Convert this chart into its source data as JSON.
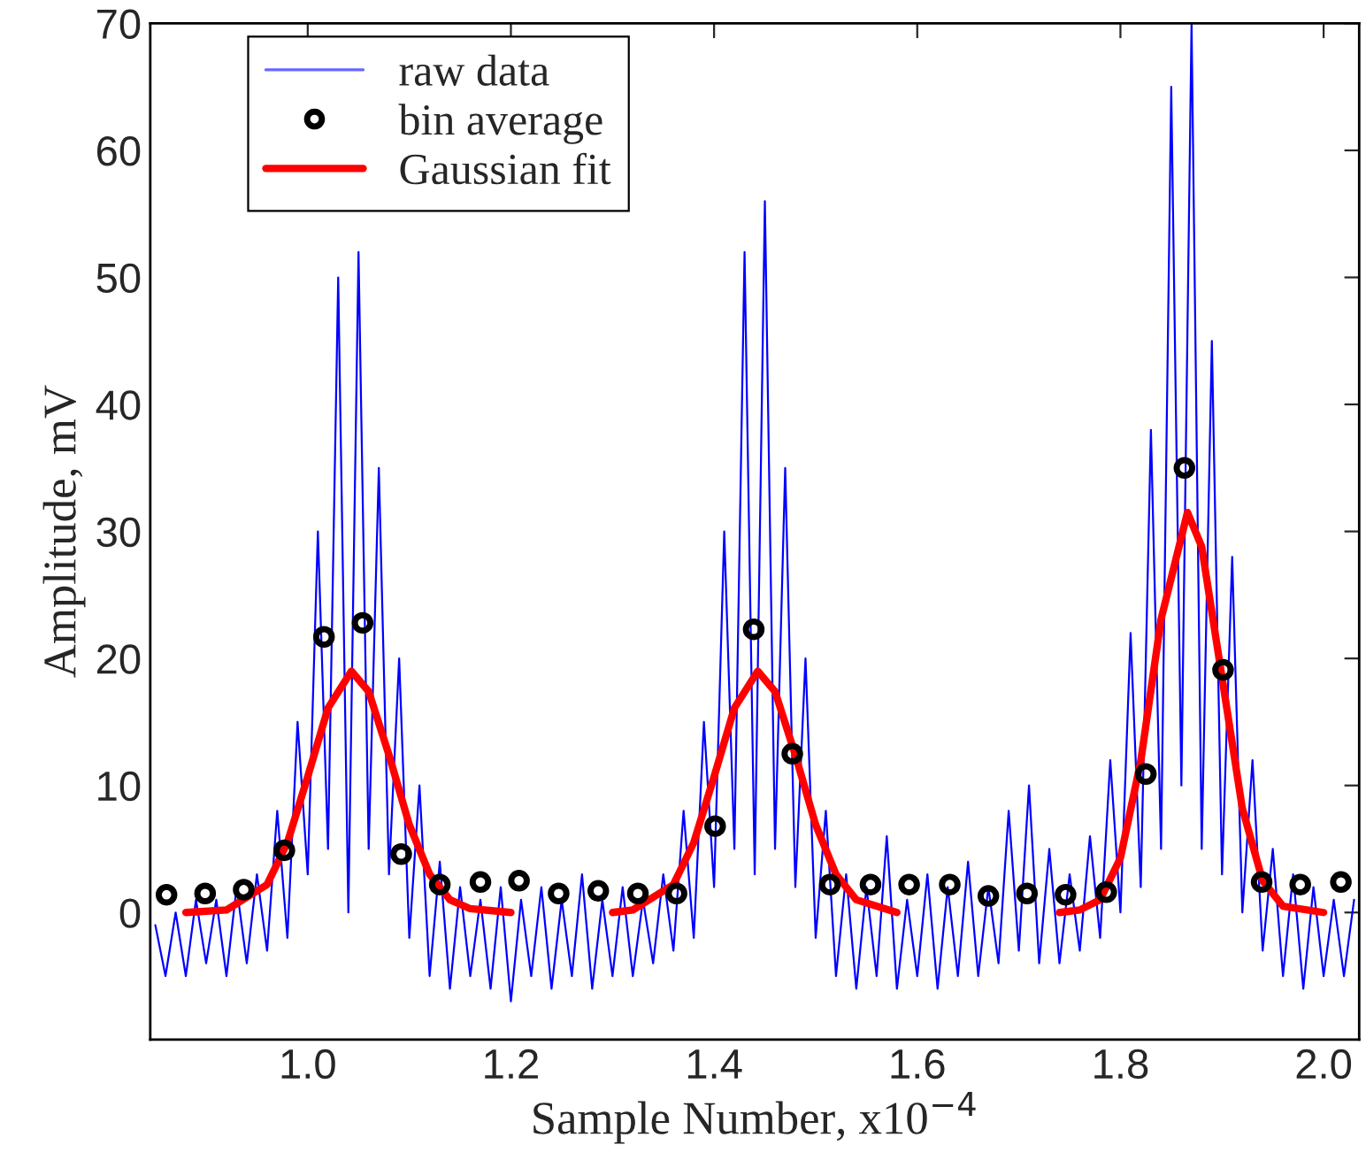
{
  "chart_data": {
    "type": "line",
    "xlabel": "Sample Number, x10$^{−4}$",
    "ylabel": "Amplitude, mV",
    "xlim": [
      0.845,
      2.035
    ],
    "ylim": [
      -10,
      70
    ],
    "xticks": [
      {
        "value": 1,
        "label": "1.0"
      },
      {
        "value": 1.2,
        "label": "1.2"
      },
      {
        "value": 1.4,
        "label": "1.4"
      },
      {
        "value": 1.6,
        "label": "1.6"
      },
      {
        "value": 1.8,
        "label": "1.8"
      },
      {
        "value": 2,
        "label": "2.0"
      }
    ],
    "yticks": [
      0,
      10,
      20,
      30,
      40,
      50,
      60,
      70
    ],
    "grid": false,
    "legend": "top left",
    "series": [
      {
        "name": "raw data",
        "color": "#0000ff",
        "marker": "none",
        "line_style": "solid",
        "x": [
          0.85,
          0.86,
          0.87,
          0.88,
          0.89,
          0.9,
          0.91,
          0.92,
          0.93,
          0.94,
          0.95,
          0.96,
          0.97,
          0.98,
          0.99,
          1.0,
          1.01,
          1.02,
          1.03,
          1.04,
          1.05,
          1.06,
          1.07,
          1.08,
          1.09,
          1.1,
          1.11,
          1.12,
          1.13,
          1.14,
          1.15,
          1.16,
          1.17,
          1.18,
          1.19,
          1.2,
          1.21,
          1.22,
          1.23,
          1.24,
          1.25,
          1.26,
          1.27,
          1.28,
          1.29,
          1.3,
          1.31,
          1.32,
          1.33,
          1.34,
          1.35,
          1.36,
          1.37,
          1.38,
          1.39,
          1.4,
          1.41,
          1.42,
          1.43,
          1.44,
          1.45,
          1.46,
          1.47,
          1.48,
          1.49,
          1.5,
          1.51,
          1.52,
          1.53,
          1.54,
          1.55,
          1.56,
          1.57,
          1.58,
          1.59,
          1.6,
          1.61,
          1.62,
          1.63,
          1.64,
          1.65,
          1.66,
          1.67,
          1.68,
          1.69,
          1.7,
          1.71,
          1.72,
          1.73,
          1.74,
          1.75,
          1.76,
          1.77,
          1.78,
          1.79,
          1.8,
          1.81,
          1.82,
          1.83,
          1.84,
          1.85,
          1.86,
          1.87,
          1.88,
          1.89,
          1.9,
          1.91,
          1.92,
          1.93,
          1.94,
          1.95,
          1.96,
          1.97,
          1.98,
          1.99,
          2.0,
          2.01,
          2.02,
          2.03
        ],
        "values": [
          -1,
          -5,
          0,
          -5,
          1,
          -4,
          1,
          -5,
          2,
          -4,
          3,
          -3,
          8,
          -2,
          15,
          3,
          30,
          5,
          50,
          0,
          52,
          5,
          35,
          3,
          20,
          -2,
          10,
          -5,
          4,
          -6,
          2,
          -5,
          1,
          -6,
          2,
          -7,
          1,
          -5,
          2,
          -6,
          1,
          -5,
          3,
          -6,
          1,
          -5,
          2,
          -5,
          1,
          -4,
          3,
          -3,
          8,
          -2,
          15,
          2,
          30,
          5,
          52,
          3,
          56,
          5,
          35,
          2,
          20,
          -2,
          8,
          -5,
          3,
          -6,
          2,
          -5,
          6,
          -6,
          1,
          -5,
          3,
          -6,
          2,
          -5,
          4,
          -5,
          2,
          -4,
          8,
          -3,
          10,
          -4,
          5,
          -4,
          3,
          -3,
          6,
          -2,
          12,
          0,
          22,
          2,
          38,
          5,
          65,
          10,
          70,
          5,
          45,
          3,
          28,
          0,
          12,
          -3,
          5,
          -5,
          3,
          -6,
          2,
          -5,
          1,
          -5,
          1
        ]
      },
      {
        "name": "bin average",
        "type": "scatter",
        "color": "#000000",
        "marker": "circle",
        "x": [
          0.861,
          0.899,
          0.937,
          0.977,
          1.016,
          1.054,
          1.092,
          1.13,
          1.17,
          1.208,
          1.247,
          1.286,
          1.325,
          1.363,
          1.401,
          1.439,
          1.477,
          1.514,
          1.554,
          1.592,
          1.632,
          1.67,
          1.708,
          1.746,
          1.786,
          1.825,
          1.863,
          1.901,
          1.939,
          1.977,
          2.017
        ],
        "values": [
          1.4,
          1.5,
          1.8,
          4.9,
          21.7,
          22.8,
          4.6,
          2.2,
          2.4,
          2.5,
          1.5,
          1.7,
          1.5,
          1.5,
          6.8,
          22.3,
          12.5,
          2.2,
          2.2,
          2.2,
          2.2,
          1.3,
          1.5,
          1.4,
          1.6,
          10.9,
          35,
          19.1,
          2.4,
          2.2,
          2.4
        ]
      },
      {
        "name": "Gaussian fit",
        "color": "#ff0000",
        "marker": "none",
        "line_style": "solid",
        "x": [
          0.88,
          0.92,
          0.96,
          0.98,
          1.0,
          1.02,
          1.043,
          1.06,
          1.08,
          1.1,
          1.12,
          1.14,
          1.16,
          1.2,
          null,
          1.3,
          1.32,
          1.36,
          1.38,
          1.4,
          1.42,
          1.443,
          1.46,
          1.48,
          1.5,
          1.52,
          1.54,
          1.58,
          null,
          1.74,
          1.76,
          1.78,
          1.8,
          1.82,
          1.84,
          1.866,
          1.88,
          1.9,
          1.92,
          1.94,
          1.96,
          2.0
        ],
        "values": [
          0,
          0.2,
          2.2,
          5.5,
          10.7,
          16.1,
          19,
          17.4,
          12.4,
          6.9,
          3,
          1,
          0.3,
          0,
          null,
          0,
          0.2,
          2.2,
          5.5,
          10.7,
          16.1,
          19,
          17.4,
          12.4,
          6.9,
          3,
          1,
          0,
          null,
          0,
          0.2,
          1,
          4.3,
          11.9,
          23.1,
          31.5,
          28.8,
          18.5,
          8.2,
          2.5,
          0.5,
          0
        ]
      }
    ]
  }
}
